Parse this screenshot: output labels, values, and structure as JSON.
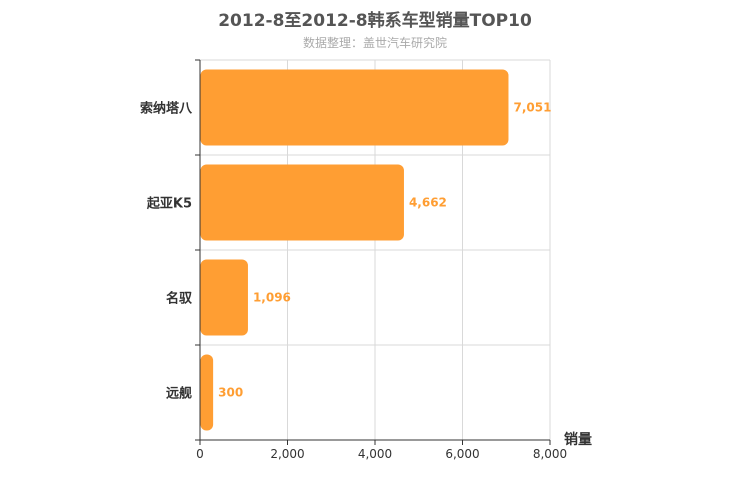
{
  "title": "2012-8至2012-8韩系车型销量TOP10",
  "subtitle": "数据整理：盖世汽车研究院",
  "colors": {
    "bar": "#FF9E33",
    "bar_label": "#FF9E33",
    "axis": "#333333",
    "grid": "#D9D9D9",
    "text": "#333333"
  },
  "chart_data": {
    "type": "bar",
    "orientation": "horizontal",
    "categories": [
      "索纳塔八",
      "起亚K5",
      "名驭",
      "远舰"
    ],
    "values": [
      7051,
      4662,
      1096,
      300
    ],
    "value_labels": [
      "7,051",
      "4,662",
      "1,096",
      "300"
    ],
    "title": "2012-8至2012-8韩系车型销量TOP10",
    "subtitle": "数据整理：盖世汽车研究院",
    "xlabel": "销量",
    "xlim": [
      0,
      8000
    ],
    "xticks": [
      0,
      2000,
      4000,
      6000,
      8000
    ],
    "xtick_labels": [
      "0",
      "2,000",
      "4,000",
      "6,000",
      "8,000"
    ],
    "grid": true,
    "legend": "none"
  }
}
